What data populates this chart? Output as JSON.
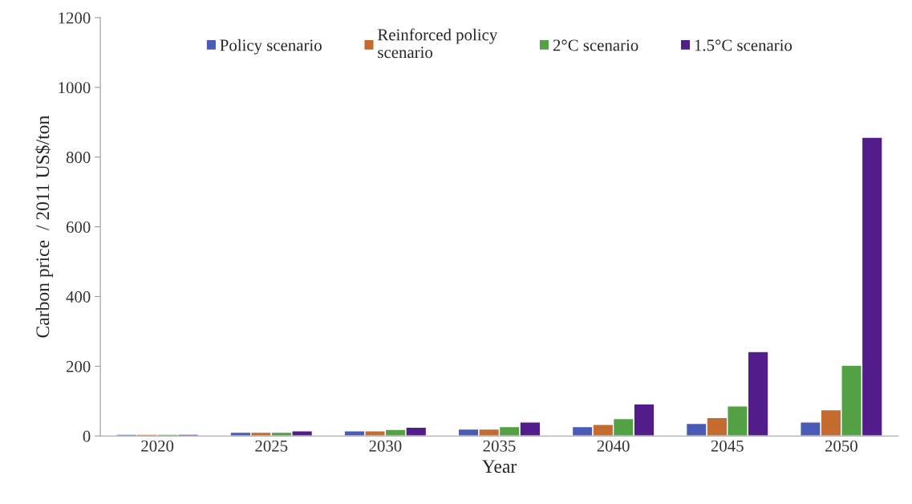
{
  "chart_data": {
    "type": "bar",
    "xlabel": "Year",
    "ylabel": "Carbon price  / 2011 US$/ton",
    "categories": [
      "2020",
      "2025",
      "2030",
      "2035",
      "2040",
      "2045",
      "2050"
    ],
    "series": [
      {
        "name": "Policy scenario",
        "color": "#4a5bb5",
        "values": [
          5,
          11,
          15,
          20,
          27,
          36,
          40
        ]
      },
      {
        "name": "Reinforced policy\nscenario",
        "color": "#c46c30",
        "values": [
          5,
          11,
          15,
          20,
          33,
          53,
          75
        ]
      },
      {
        "name": "2°C scenario",
        "color": "#54a044",
        "values": [
          5,
          11,
          19,
          27,
          50,
          86,
          203
        ]
      },
      {
        "name": "1.5°C scenario",
        "color": "#521d8a",
        "values": [
          5,
          15,
          25,
          40,
          92,
          242,
          857
        ]
      }
    ],
    "ylim": [
      0,
      1200
    ],
    "yticks": [
      0,
      200,
      400,
      600,
      800,
      1000,
      1200
    ],
    "grid": false,
    "legend": "top"
  }
}
